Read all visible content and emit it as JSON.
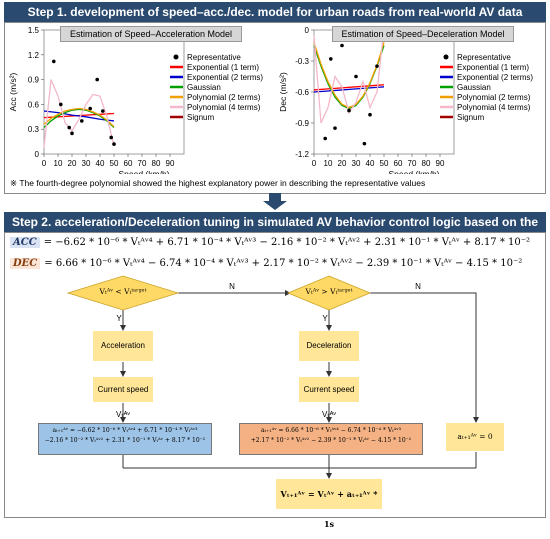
{
  "step1": {
    "title": "Step 1. development of speed–acc./dec. model for urban roads from real-world AV data",
    "note": "※ The fourth-degree polynomial showed the highest explanatory power in describing the representative values"
  },
  "step2": {
    "title": "Step 2. acceleration/Deceleration tuning in simulated AV behavior control logic based on the model",
    "acc_tag": "ACC",
    "acc_equation": "= −6.62 * 10⁻⁶ * Vₜᴬᵛ⁴ + 6.71 * 10⁻⁴ * Vₜᴬᵛ³ − 2.16 * 10⁻² * Vₜᴬᵛ² + 2.31 * 10⁻¹ * Vₜᴬᵛ + 8.17 * 10⁻²",
    "dec_tag": "DEC",
    "dec_equation": "= 6.66 * 10⁻⁶ * Vₜᴬᵛ⁴ − 6.74 * 10⁻⁴ * Vₜᴬᵛ³ + 2.17 * 10⁻² * Vₜᴬᵛ² − 2.39 * 10⁻¹ * Vₜᴬᵛ − 4.15 * 10⁻²"
  },
  "flowchart": {
    "cond1": "Vₜᴬᵛ < Vₜᵗᵃʳᵍᵉᵗ",
    "cond2": "Vₜᴬᵛ > Vₜᵗᵃʳᵍᵉᵗ",
    "yes": "Y",
    "no": "N",
    "acceleration": "Acceleration",
    "deceleration": "Deceleration",
    "current_speed_1": "Current speed Vₜᴬᵛ",
    "current_speed_2": "Current speed Vₜᴬᵛ",
    "acc_formula_line1": "aₜ₊₁ᴬᵛ = −6.62 * 10⁻⁶ * Vₜᴬᵛ⁴ + 6.71 * 10⁻⁴ * Vₜᴬᵛ³",
    "acc_formula_line2": "−2.16 * 10⁻² * Vₜᴬᵛ² + 2.31 * 10⁻¹ * Vₜᴬᵛ + 8.17 * 10⁻²",
    "dec_formula_line1": "aₜ₊₁ᴬᵛ = 6.66 * 10⁻⁶ * Vₜᴬᵛ⁴ − 6.74 * 10⁻⁴ * Vₜᴬᵛ³",
    "dec_formula_line2": "+2.17 * 10⁻² * Vₜᴬᵛ² − 2.39 * 10⁻¹ * Vₜᴬᵛ − 4.15 * 10⁻²",
    "zero_formula": "aₜ₊₁ᴬᵛ = 0",
    "update_formula": "Vₜ₊₁ᴬᵛ = Vₜᴬᵛ + aₜ₊₁ᴬᵛ * 1s"
  },
  "colors": {
    "header": "#2b4a6f",
    "diamond": "#ffd966",
    "box": "#ffe699",
    "acc_formula": "#9dc3e6",
    "dec_formula": "#f4b183",
    "acc_tag_bg": "#dae3f3",
    "dec_tag_bg": "#fbe5d6"
  },
  "chart_data": [
    {
      "type": "scatter",
      "title": "Estimation of Speed–Acceleration Model",
      "xlabel": "Speed (km/h)",
      "ylabel": "Acc (m/s²)",
      "xlim": [
        0,
        100
      ],
      "ylim": [
        0,
        1.5
      ],
      "xticks": [
        0,
        10,
        20,
        30,
        40,
        50,
        60,
        70,
        80,
        90
      ],
      "yticks": [
        0,
        0.3,
        0.6,
        0.9,
        1.2,
        1.5
      ],
      "ytick_labels": [
        "0",
        "0.3",
        "0.6",
        "0.9",
        "1.2",
        "1.5"
      ],
      "points_x": [
        7,
        12,
        18,
        20,
        27,
        33,
        38,
        42,
        48,
        50
      ],
      "points_y": [
        1.12,
        0.6,
        0.32,
        0.25,
        0.4,
        0.55,
        0.9,
        0.52,
        0.2,
        0.12
      ],
      "series": [
        {
          "name": "Representative",
          "color": "#000000"
        },
        {
          "name": "Exponential (1 term)",
          "color": "#ff0000",
          "x": [
            0,
            10,
            20,
            30,
            40,
            50
          ],
          "y": [
            0.44,
            0.45,
            0.46,
            0.47,
            0.48,
            0.49
          ]
        },
        {
          "name": "Exponential (2 terms)",
          "color": "#0000cc",
          "x": [
            0,
            10,
            20,
            30,
            40,
            50
          ],
          "y": [
            0.52,
            0.5,
            0.47,
            0.45,
            0.42,
            0.4
          ]
        },
        {
          "name": "Gaussian",
          "color": "#00a000",
          "x": [
            0,
            5,
            10,
            15,
            20,
            25,
            30,
            35,
            40,
            45,
            50
          ],
          "y": [
            0.32,
            0.4,
            0.46,
            0.5,
            0.53,
            0.54,
            0.53,
            0.5,
            0.46,
            0.4,
            0.32
          ]
        },
        {
          "name": "Polynomial (2 terms)",
          "color": "#f0a000",
          "x": [
            0,
            5,
            10,
            15,
            20,
            25,
            30,
            35,
            40,
            45,
            50
          ],
          "y": [
            0.36,
            0.43,
            0.48,
            0.52,
            0.54,
            0.55,
            0.54,
            0.51,
            0.47,
            0.41,
            0.33
          ]
        },
        {
          "name": "Polynomial (4 terms)",
          "color": "#f4b8c8",
          "x": [
            0,
            5,
            10,
            15,
            20,
            25,
            30,
            35,
            40,
            45,
            50
          ],
          "y": [
            0.08,
            0.9,
            0.7,
            0.38,
            0.28,
            0.42,
            0.6,
            0.72,
            0.7,
            0.45,
            0.1
          ]
        },
        {
          "name": "Signum",
          "color": "#a00000"
        }
      ],
      "legend": "right"
    },
    {
      "type": "scatter",
      "title": "Estimation of Speed–Deceleration Model",
      "xlabel": "Speed (km/h)",
      "ylabel": "Dec (m/s²)",
      "xlim": [
        0,
        100
      ],
      "ylim": [
        -1.2,
        0
      ],
      "xticks": [
        0,
        10,
        20,
        30,
        40,
        50,
        60,
        70,
        80,
        90
      ],
      "yticks": [
        0,
        -0.3,
        -0.6,
        -0.9,
        -1.2
      ],
      "ytick_labels": [
        "0",
        "-0.3",
        "-0.6",
        "-0.9",
        "-1.2"
      ],
      "points_x": [
        8,
        12,
        15,
        20,
        25,
        30,
        36,
        40,
        45,
        50
      ],
      "points_y": [
        -1.05,
        -0.28,
        -0.95,
        -0.15,
        -0.78,
        -0.45,
        -1.1,
        -0.82,
        -0.35,
        -0.08
      ],
      "series": [
        {
          "name": "Representative",
          "color": "#000000"
        },
        {
          "name": "Exponential (1 term)",
          "color": "#ff0000",
          "x": [
            0,
            10,
            20,
            30,
            40,
            50
          ],
          "y": [
            -0.58,
            -0.57,
            -0.56,
            -0.55,
            -0.54,
            -0.53
          ]
        },
        {
          "name": "Exponential (2 terms)",
          "color": "#0000cc",
          "x": [
            0,
            10,
            20,
            30,
            40,
            50
          ],
          "y": [
            -0.6,
            -0.59,
            -0.58,
            -0.57,
            -0.56,
            -0.55
          ]
        },
        {
          "name": "Gaussian",
          "color": "#00a000",
          "x": [
            0,
            5,
            10,
            15,
            20,
            25,
            30,
            35,
            40,
            45,
            50
          ],
          "y": [
            -0.15,
            -0.35,
            -0.52,
            -0.65,
            -0.73,
            -0.76,
            -0.73,
            -0.65,
            -0.52,
            -0.35,
            -0.15
          ]
        },
        {
          "name": "Polynomial (2 terms)",
          "color": "#f0a000",
          "x": [
            0,
            5,
            10,
            15,
            20,
            25,
            30,
            35,
            40,
            45,
            50
          ],
          "y": [
            -0.12,
            -0.33,
            -0.5,
            -0.63,
            -0.72,
            -0.75,
            -0.72,
            -0.64,
            -0.51,
            -0.34,
            -0.12
          ]
        },
        {
          "name": "Polynomial (4 terms)",
          "color": "#f4b8c8",
          "x": [
            0,
            5,
            10,
            15,
            20,
            25,
            30,
            35,
            40,
            45,
            50
          ],
          "y": [
            -0.05,
            -0.9,
            -0.75,
            -0.45,
            -0.55,
            -0.8,
            -0.7,
            -0.5,
            -0.75,
            -0.6,
            0.02
          ]
        },
        {
          "name": "Signum",
          "color": "#a00000"
        }
      ],
      "legend": "right"
    }
  ]
}
